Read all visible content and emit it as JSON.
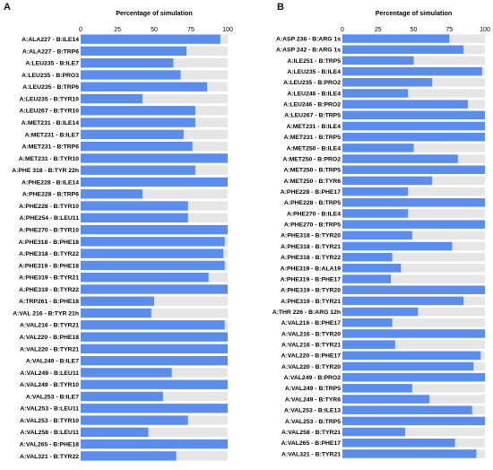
{
  "panels": [
    {
      "label": "A",
      "chart_data": {
        "type": "bar",
        "orientation": "horizontal",
        "title": "Percentage of simulation",
        "xlim": [
          0,
          100
        ],
        "ticks": [
          0,
          25,
          50,
          75,
          100
        ],
        "bar_color": "#5b8def",
        "track_color": "#e6e6e6",
        "categories": [
          "A:ALA227 - B:ILE14",
          "A:ALA227 - B:TRP6",
          "A:LEU235 - B:ILE7",
          "A:LEU235 - B:PRO3",
          "A:LEU235 - B:TRP6",
          "A:LEU235 - B:TYR10",
          "A:LEU267 - B:TYR10",
          "A:MET231 - B:ILE14",
          "A:MET231 - B:ILE7",
          "A:MET231 - B:TRP6",
          "A:MET231 - B:TYR10",
          "A:PHE 318 - B:TYR 22h",
          "A:PHE228 - B:ILE14",
          "A:PHE228 - B:TRP6",
          "A:PHE228 - B:TYR10",
          "A:PHE254 - B:LEU11",
          "A:PHE270 - B:TYR10",
          "A:PHE318 - B:PHE18",
          "A:PHE318 - B:TYR22",
          "A:PHE319 - B:PHE18",
          "A:PHE319 - B:TYR21",
          "A:PHE319 - B:TYR22",
          "A:TRP261 - B:PHE18",
          "A:VAL 216 - B:TYR 21h",
          "A:VAL216 - B:TYR21",
          "A:VAL220 - B:PHE18",
          "A:VAL220 - B:TYR21",
          "A:VAL249 - B:ILE7",
          "A:VAL249 - B:LEU11",
          "A:VAL249 - B:TYR10",
          "A:VAL253 - B:ILE7",
          "A:VAL253 - B:LEU11",
          "A:VAL253 - B:TYR10",
          "A:VAL258 - B:LEU11",
          "A:VAL265 - B:PHE18",
          "A:VAL321 - B:TYR22"
        ],
        "values": [
          95,
          72,
          63,
          68,
          86,
          42,
          78,
          78,
          70,
          76,
          100,
          78,
          100,
          42,
          73,
          73,
          100,
          98,
          97,
          98,
          87,
          100,
          50,
          48,
          98,
          100,
          100,
          100,
          62,
          100,
          56,
          100,
          73,
          46,
          100,
          65
        ]
      }
    },
    {
      "label": "B",
      "chart_data": {
        "type": "bar",
        "orientation": "horizontal",
        "title": "Percentage of simulation",
        "xlim": [
          0,
          100
        ],
        "ticks": [
          0,
          25,
          50,
          75,
          100
        ],
        "bar_color": "#5b8def",
        "track_color": "#e6e6e6",
        "categories": [
          "A:ASP 236 - B:ARG 1s",
          "A:ASP 242 - B:ARG 1s",
          "A:ILE251 - B:TRP5",
          "A:LEU235 - B:ILE4",
          "A:LEU235 - B:PRO2",
          "A:LEU246 - B:ILE4",
          "A:LEU246 - B:PRO2",
          "A:LEU267 - B:TRP5",
          "A:MET231 - B:ILE4",
          "A:MET231 - B:TRP5",
          "A:MET250 - B:ILE4",
          "A:MET250 - B:PRO2",
          "A:MET250 - B:TRP5",
          "A:MET250 - B:TYR6",
          "A:PHE228 - B:PHE17",
          "A:PHE228 - B:TRP5",
          "A:PHE270 - B:ILE4",
          "A:PHE270 - B:TRP5",
          "A:PHE318 - B:TYR20",
          "A:PHE318 - B:TYR21",
          "A:PHE318 - B:TYR22",
          "A:PHE319 - B:ALA19",
          "A:PHE319 - B:PHE17",
          "A:PHE319 - B:TYR20",
          "A:PHE319 - B:TYR21",
          "A:THR 226 - B:ARG 12h",
          "A:VAL216 - B:PHE17",
          "A:VAL216 - B:TYR20",
          "A:VAL216 - B:TYR21",
          "A:VAL220 - B:PHE17",
          "A:VAL220 - B:TYR20",
          "A:VAL249 - B:PRO2",
          "A:VAL249 - B:TRP5",
          "A:VAL249 - B:TYR6",
          "A:VAL253 - B:ILE13",
          "A:VAL253 - B:TRP5",
          "A:VAL258 - B:TYR21",
          "A:VAL265 - B:PHE17",
          "A:VAL321 - B:TYR21"
        ],
        "values": [
          75,
          85,
          50,
          98,
          63,
          46,
          88,
          100,
          100,
          100,
          50,
          81,
          100,
          63,
          46,
          100,
          46,
          100,
          49,
          77,
          35,
          41,
          34,
          100,
          85,
          53,
          35,
          100,
          37,
          97,
          92,
          100,
          49,
          61,
          91,
          100,
          44,
          79,
          94
        ]
      }
    }
  ]
}
